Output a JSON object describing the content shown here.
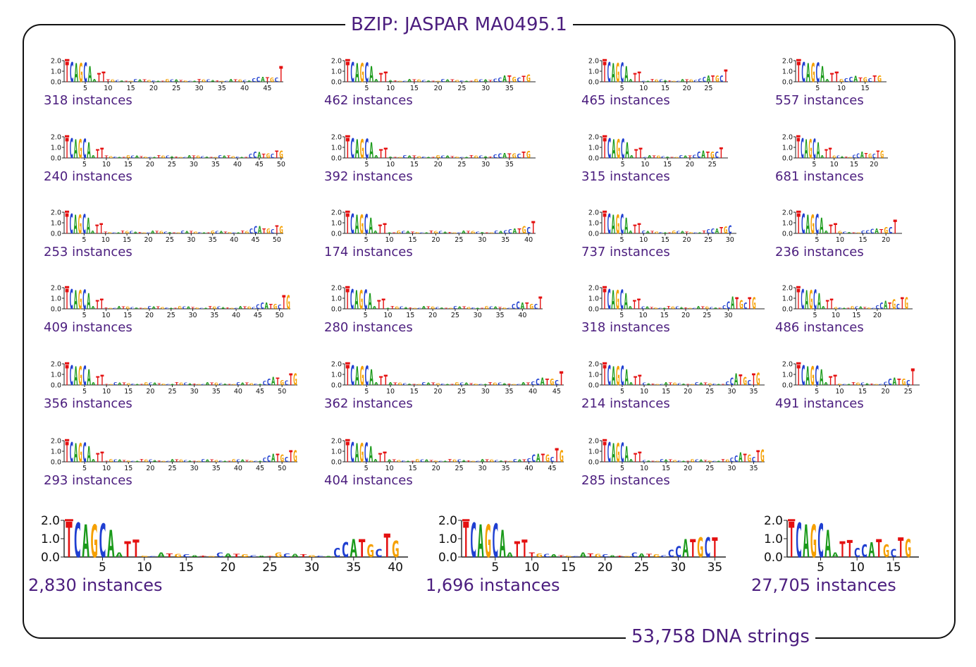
{
  "title": "BZIP: JASPAR MA0495.1",
  "footer": "53,758 DNA strings",
  "colors": {
    "A": "#1a9a1a",
    "C": "#1f3fd1",
    "G": "#f5a000",
    "T": "#e41010",
    "text": "#4b1d7e"
  },
  "y_tick_labels": [
    "2.0",
    "1.0",
    "0.0"
  ],
  "chart_data": {
    "type": "sequence-logo-grid",
    "logos": [
      {
        "counts_label": "318 instances",
        "length": 48,
        "xticks": [
          5,
          10,
          15,
          20,
          25,
          30,
          35,
          40,
          45
        ],
        "motif_start": 42,
        "motif": "CCATGCTG",
        "motif_heights": [
          0.35,
          0.5,
          0.5,
          0.45,
          0.4,
          0.4,
          1.5,
          0.55
        ]
      },
      {
        "counts_label": "462 instances",
        "length": 40,
        "xticks": [
          5,
          10,
          15,
          20,
          25,
          30,
          35
        ],
        "motif_start": 32,
        "motif": "CCATGCTG",
        "motif_heights": [
          0.3,
          0.4,
          0.6,
          0.6,
          0.5,
          0.4,
          0.55,
          0.7
        ]
      },
      {
        "counts_label": "465 instances",
        "length": 29,
        "xticks": [
          5,
          10,
          15,
          20,
          25
        ],
        "motif_start": 23,
        "motif": "CCATGCT",
        "motif_heights": [
          0.3,
          0.5,
          0.6,
          0.6,
          0.6,
          0.6,
          1.2
        ]
      },
      {
        "counts_label": "557 instances",
        "length": 19,
        "xticks": [
          5,
          10,
          15
        ],
        "motif_start": 11,
        "motif": "CCATGCTG",
        "motif_heights": [
          0.35,
          0.5,
          0.55,
          0.4,
          0.45,
          0.35,
          0.6,
          0.6
        ]
      },
      {
        "counts_label": "240 instances",
        "length": 50,
        "xticks": [
          5,
          10,
          15,
          20,
          25,
          30,
          35,
          40,
          45,
          50
        ],
        "motif_start": 43,
        "motif": "CCATGCTG",
        "motif_heights": [
          0.4,
          0.6,
          0.55,
          0.4,
          0.45,
          0.4,
          0.7,
          0.7
        ]
      },
      {
        "counts_label": "392 instances",
        "length": 40,
        "xticks": [
          5,
          10,
          15,
          20,
          25,
          30,
          35
        ],
        "motif_start": 32,
        "motif": "CCATGCTG",
        "motif_heights": [
          0.35,
          0.45,
          0.5,
          0.45,
          0.45,
          0.4,
          0.6,
          0.65
        ]
      },
      {
        "counts_label": "315 instances",
        "length": 28,
        "xticks": [
          5,
          10,
          15,
          20,
          25
        ],
        "motif_start": 21,
        "motif": "CCATGCT",
        "motif_heights": [
          0.3,
          0.6,
          0.7,
          0.6,
          0.6,
          0.6,
          1.0
        ]
      },
      {
        "counts_label": "681 instances",
        "length": 23,
        "xticks": [
          5,
          10,
          15,
          20
        ],
        "motif_start": 15,
        "motif": "CCATGCTG",
        "motif_heights": [
          0.3,
          0.45,
          0.6,
          0.5,
          0.4,
          0.4,
          0.7,
          0.7
        ]
      },
      {
        "counts_label": "253 instances",
        "length": 51,
        "xticks": [
          5,
          10,
          15,
          20,
          25,
          30,
          35,
          40,
          45,
          50
        ],
        "motif_start": 44,
        "motif": "CCATGCTG",
        "motif_heights": [
          0.5,
          0.7,
          0.7,
          0.5,
          0.5,
          0.4,
          0.8,
          0.7
        ]
      },
      {
        "counts_label": "174 instances",
        "length": 41,
        "xticks": [
          5,
          10,
          15,
          20,
          25,
          30,
          35,
          40
        ],
        "motif_start": 35,
        "motif": "CCATGCT",
        "motif_heights": [
          0.3,
          0.4,
          0.5,
          0.5,
          0.7,
          0.6,
          1.2
        ]
      },
      {
        "counts_label": "737 instances",
        "length": 31,
        "xticks": [
          5,
          10,
          15,
          20,
          25,
          30
        ],
        "motif_start": 25,
        "motif": "CCATGC",
        "motif_heights": [
          0.4,
          0.5,
          0.5,
          0.6,
          0.65,
          0.8
        ]
      },
      {
        "counts_label": "236 instances",
        "length": 23,
        "xticks": [
          5,
          10,
          15,
          20
        ],
        "motif_start": 16,
        "motif": "CCATGCT",
        "motif_heights": [
          0.3,
          0.45,
          0.5,
          0.4,
          0.6,
          0.6,
          1.3
        ]
      },
      {
        "counts_label": "409 instances",
        "length": 52,
        "xticks": [
          5,
          10,
          15,
          20,
          25,
          30,
          35,
          40,
          45,
          50
        ],
        "motif_start": 45,
        "motif": "CCATGCTG",
        "motif_heights": [
          0.45,
          0.6,
          0.6,
          0.5,
          0.5,
          0.4,
          1.3,
          1.3
        ]
      },
      {
        "counts_label": "280 instances",
        "length": 44,
        "xticks": [
          5,
          10,
          15,
          20,
          25,
          30,
          35,
          40
        ],
        "motif_start": 38,
        "motif": "CCATGCT",
        "motif_heights": [
          0.5,
          0.7,
          0.6,
          0.6,
          0.5,
          0.5,
          1.2
        ]
      },
      {
        "counts_label": "318 instances",
        "length": 38,
        "xticks": [
          5,
          10,
          15,
          20,
          25,
          30
        ],
        "motif_start": 29,
        "motif": "CCATGCTG",
        "motif_heights": [
          0.35,
          0.7,
          1.2,
          1.1,
          0.85,
          0.6,
          1.1,
          1.1
        ]
      },
      {
        "counts_label": "486 instances",
        "length": 28,
        "xticks": [
          5,
          10,
          15,
          20
        ],
        "motif_start": 20,
        "motif": "CCATGCTG",
        "motif_heights": [
          0.35,
          0.6,
          0.8,
          0.6,
          0.9,
          0.5,
          1.1,
          1.1
        ]
      },
      {
        "counts_label": "356 instances",
        "length": 53,
        "xticks": [
          5,
          10,
          15,
          20,
          25,
          30,
          35,
          40,
          45,
          50
        ],
        "motif_start": 46,
        "motif": "CCATGCTG",
        "motif_heights": [
          0.4,
          0.6,
          0.8,
          0.7,
          0.5,
          0.45,
          1.1,
          1.1
        ]
      },
      {
        "counts_label": "362 instances",
        "length": 46,
        "xticks": [
          5,
          10,
          15,
          20,
          25,
          30,
          35,
          40,
          45
        ],
        "motif_start": 40,
        "motif": "CCATGCT",
        "motif_heights": [
          0.35,
          0.6,
          0.7,
          0.6,
          0.6,
          0.5,
          1.3
        ]
      },
      {
        "counts_label": "214 instances",
        "length": 37,
        "xticks": [
          5,
          10,
          15,
          20,
          25,
          30,
          35
        ],
        "motif_start": 29,
        "motif": "CCATGCTG",
        "motif_heights": [
          0.35,
          0.7,
          1.1,
          1.0,
          0.8,
          0.5,
          1.1,
          1.2
        ]
      },
      {
        "counts_label": "491 instances",
        "length": 27,
        "xticks": [
          5,
          10,
          15,
          20,
          25
        ],
        "motif_start": 20,
        "motif": "CCATGCT",
        "motif_heights": [
          0.3,
          0.6,
          0.7,
          0.6,
          0.6,
          0.5,
          1.6
        ]
      },
      {
        "counts_label": "293 instances",
        "length": 53,
        "xticks": [
          5,
          10,
          15,
          20,
          25,
          30,
          35,
          40,
          45,
          50
        ],
        "motif_start": 46,
        "motif": "CCATGCTG",
        "motif_heights": [
          0.4,
          0.6,
          0.8,
          0.8,
          0.7,
          0.5,
          1.1,
          1.1
        ]
      },
      {
        "counts_label": "404 instances",
        "length": 47,
        "xticks": [
          5,
          10,
          15,
          20,
          25,
          30,
          35,
          40,
          45
        ],
        "motif_start": 40,
        "motif": "CCATGCTG",
        "motif_heights": [
          0.35,
          0.7,
          0.8,
          0.8,
          0.7,
          0.5,
          1.3,
          1.1
        ]
      },
      {
        "counts_label": "285 instances",
        "length": 37,
        "xticks": [
          5,
          10,
          15,
          20,
          25,
          30,
          35
        ],
        "motif_start": 30,
        "motif": "CCATGCTG",
        "motif_heights": [
          0.4,
          0.6,
          0.9,
          0.8,
          0.7,
          0.5,
          1.1,
          1.2
        ]
      },
      {
        "counts_label": "2,830 instances",
        "length": 41,
        "xticks": [
          5,
          10,
          15,
          20,
          25,
          30,
          35,
          40
        ],
        "motif_start": 33,
        "motif": "CCATGCTG",
        "motif_heights": [
          0.5,
          0.8,
          1.0,
          1.0,
          0.7,
          0.45,
          1.3,
          0.9
        ]
      },
      {
        "counts_label": "1,696 instances",
        "length": 36,
        "xticks": [
          5,
          10,
          15,
          20,
          25,
          30,
          35
        ],
        "motif_start": 29,
        "motif": "CCATGCT",
        "motif_heights": [
          0.4,
          0.6,
          1.0,
          1.0,
          1.1,
          1.1,
          1.1
        ]
      },
      {
        "counts_label": "27,705 instances",
        "length": 18,
        "xticks": [
          5,
          10,
          15
        ],
        "motif_start": 10,
        "motif": "CCATGCTG",
        "motif_heights": [
          0.5,
          0.7,
          0.8,
          1.0,
          0.7,
          0.45,
          1.1,
          1.0
        ]
      }
    ]
  }
}
